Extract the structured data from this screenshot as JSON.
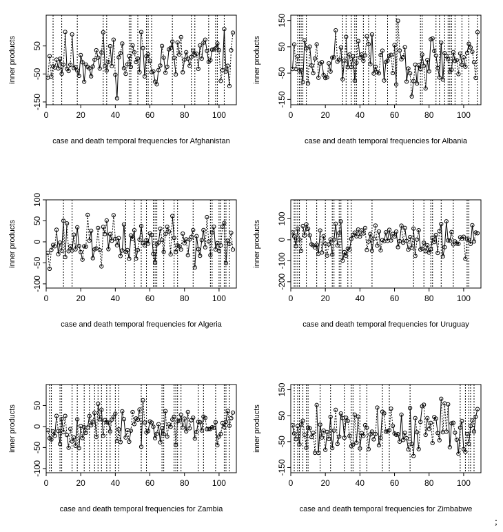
{
  "figure": {
    "trailing_text": ";"
  },
  "chart_data": [
    {
      "type": "scatter",
      "country": "Afghanistan",
      "xlabel": "case and death temporal frequencies for Afghanistan",
      "ylabel": "inner products",
      "xlim": [
        0,
        110
      ],
      "ylim": [
        -160,
        160
      ],
      "xticks": [
        0,
        20,
        40,
        60,
        80,
        100
      ],
      "yticks": [
        -150,
        -50,
        50
      ],
      "seed": 11,
      "n": 108,
      "spread": 150,
      "x_values": "1 through 108 (one point per temporal frequency)",
      "y_range_observed": [
        -160,
        160
      ],
      "grid": false,
      "legend": "none"
    },
    {
      "type": "scatter",
      "country": "Albania",
      "xlabel": "case and death temporal frequencies for Albania",
      "ylabel": "inner products",
      "xlim": [
        0,
        110
      ],
      "ylim": [
        -170,
        170
      ],
      "xticks": [
        0,
        20,
        40,
        60,
        80,
        100
      ],
      "yticks": [
        -150,
        -50,
        50,
        150
      ],
      "seed": 23,
      "n": 108,
      "spread": 160,
      "x_values": "1 through 108 (one point per temporal frequency)",
      "y_range_observed": [
        -170,
        170
      ],
      "grid": false,
      "legend": "none"
    },
    {
      "type": "scatter",
      "country": "Algeria",
      "xlabel": "case and death temporal frequencies for Algeria",
      "ylabel": "inner products",
      "xlim": [
        0,
        110
      ],
      "ylim": [
        -110,
        100
      ],
      "xticks": [
        0,
        20,
        40,
        60,
        80,
        100
      ],
      "yticks": [
        -100,
        -50,
        0,
        50,
        100
      ],
      "seed": 37,
      "n": 108,
      "spread": 85,
      "x_values": "1 through 108 (one point per temporal frequency)",
      "y_range_observed": [
        -110,
        100
      ],
      "grid": false,
      "legend": "none"
    },
    {
      "type": "scatter",
      "country": "Uruguay",
      "xlabel": "case and death temporal frequencies for Uruguay",
      "ylabel": "inner products",
      "xlim": [
        0,
        110
      ],
      "ylim": [
        -230,
        190
      ],
      "xticks": [
        0,
        20,
        40,
        60,
        80,
        100
      ],
      "yticks": [
        -200,
        -100,
        0,
        100
      ],
      "seed": 51,
      "n": 108,
      "spread": 130,
      "x_values": "1 through 108 (one point per temporal frequency)",
      "y_range_observed": [
        -220,
        190
      ],
      "grid": false,
      "legend": "none"
    },
    {
      "type": "scatter",
      "country": "Zambia",
      "xlabel": "case and death temporal frequencies for Zambia",
      "ylabel": "inner products",
      "xlim": [
        0,
        110
      ],
      "ylim": [
        -110,
        100
      ],
      "xticks": [
        0,
        20,
        40,
        60,
        80,
        100
      ],
      "yticks": [
        -100,
        -50,
        0,
        50
      ],
      "seed": 67,
      "n": 108,
      "spread": 70,
      "x_values": "1 through 108 (one point per temporal frequency)",
      "y_range_observed": [
        -110,
        100
      ],
      "grid": false,
      "legend": "none"
    },
    {
      "type": "scatter",
      "country": "Zimbabwe",
      "xlabel": "case and death temporal frequencies for Zimbabwe",
      "ylabel": "inner products",
      "xlim": [
        0,
        110
      ],
      "ylim": [
        -170,
        170
      ],
      "xticks": [
        0,
        20,
        40,
        60,
        80,
        100
      ],
      "yticks": [
        -150,
        -50,
        50,
        150
      ],
      "seed": 79,
      "n": 108,
      "spread": 155,
      "x_values": "1 through 108 (one point per temporal frequency)",
      "y_range_observed": [
        -170,
        170
      ],
      "grid": false,
      "legend": "none"
    }
  ]
}
